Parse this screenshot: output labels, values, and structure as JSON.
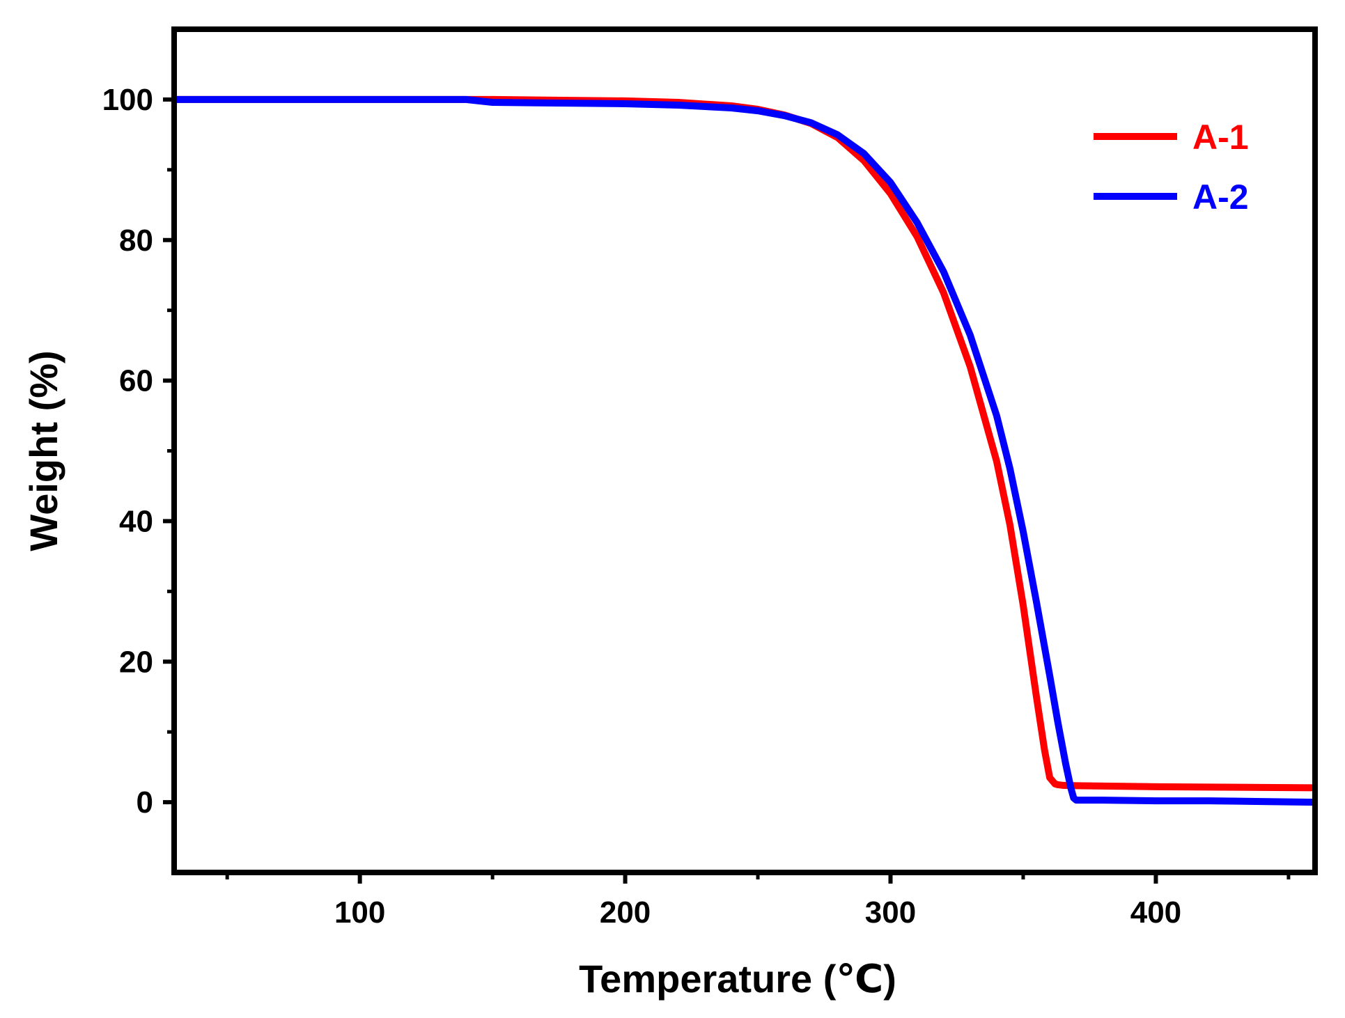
{
  "chart_data": {
    "type": "line",
    "title": "",
    "xlabel": "Temperature (℃)",
    "ylabel": "Weight (%)",
    "xlim": [
      30,
      460
    ],
    "ylim": [
      -10,
      110
    ],
    "xticks": [
      100,
      200,
      300,
      400
    ],
    "xtick_labels": [
      "100",
      "200",
      "300",
      "400"
    ],
    "x_minor_ticks": [
      50,
      150,
      250,
      350,
      450
    ],
    "yticks": [
      0,
      20,
      40,
      60,
      80,
      100
    ],
    "ytick_labels": [
      "0",
      "20",
      "40",
      "60",
      "80",
      "100"
    ],
    "y_minor_ticks": [
      -10,
      10,
      30,
      50,
      70,
      90,
      110
    ],
    "grid": false,
    "legend_position": "top-right",
    "series": [
      {
        "name": "A-1",
        "color": "#ff0000",
        "x": [
          30,
          50,
          100,
          150,
          200,
          220,
          240,
          250,
          260,
          270,
          280,
          290,
          300,
          310,
          320,
          330,
          340,
          345,
          350,
          355,
          358,
          360,
          362,
          363,
          365,
          370,
          380,
          400,
          420,
          440,
          460
        ],
        "y": [
          100,
          100,
          100,
          100,
          99.8,
          99.6,
          99.1,
          98.6,
          97.8,
          96.6,
          94.6,
          91.3,
          86.6,
          80.5,
          72.5,
          62.0,
          48.5,
          39.5,
          28.0,
          15.0,
          7.5,
          3.5,
          2.6,
          2.5,
          2.4,
          2.35,
          2.3,
          2.2,
          2.15,
          2.1,
          2.05
        ]
      },
      {
        "name": "A-2",
        "color": "#0000ff",
        "x": [
          30,
          50,
          100,
          140,
          150,
          200,
          220,
          240,
          250,
          260,
          270,
          280,
          290,
          300,
          310,
          320,
          330,
          340,
          345,
          350,
          355,
          360,
          363,
          366,
          368,
          369,
          370,
          372,
          380,
          400,
          420,
          440,
          460
        ],
        "y": [
          100,
          100,
          100,
          100,
          99.6,
          99.4,
          99.2,
          98.8,
          98.4,
          97.7,
          96.7,
          95.0,
          92.3,
          88.2,
          82.5,
          75.5,
          66.5,
          55.0,
          47.5,
          38.5,
          28.5,
          18.0,
          11.5,
          5.5,
          2.0,
          0.6,
          0.3,
          0.3,
          0.3,
          0.2,
          0.2,
          0.1,
          0.0
        ]
      }
    ]
  }
}
